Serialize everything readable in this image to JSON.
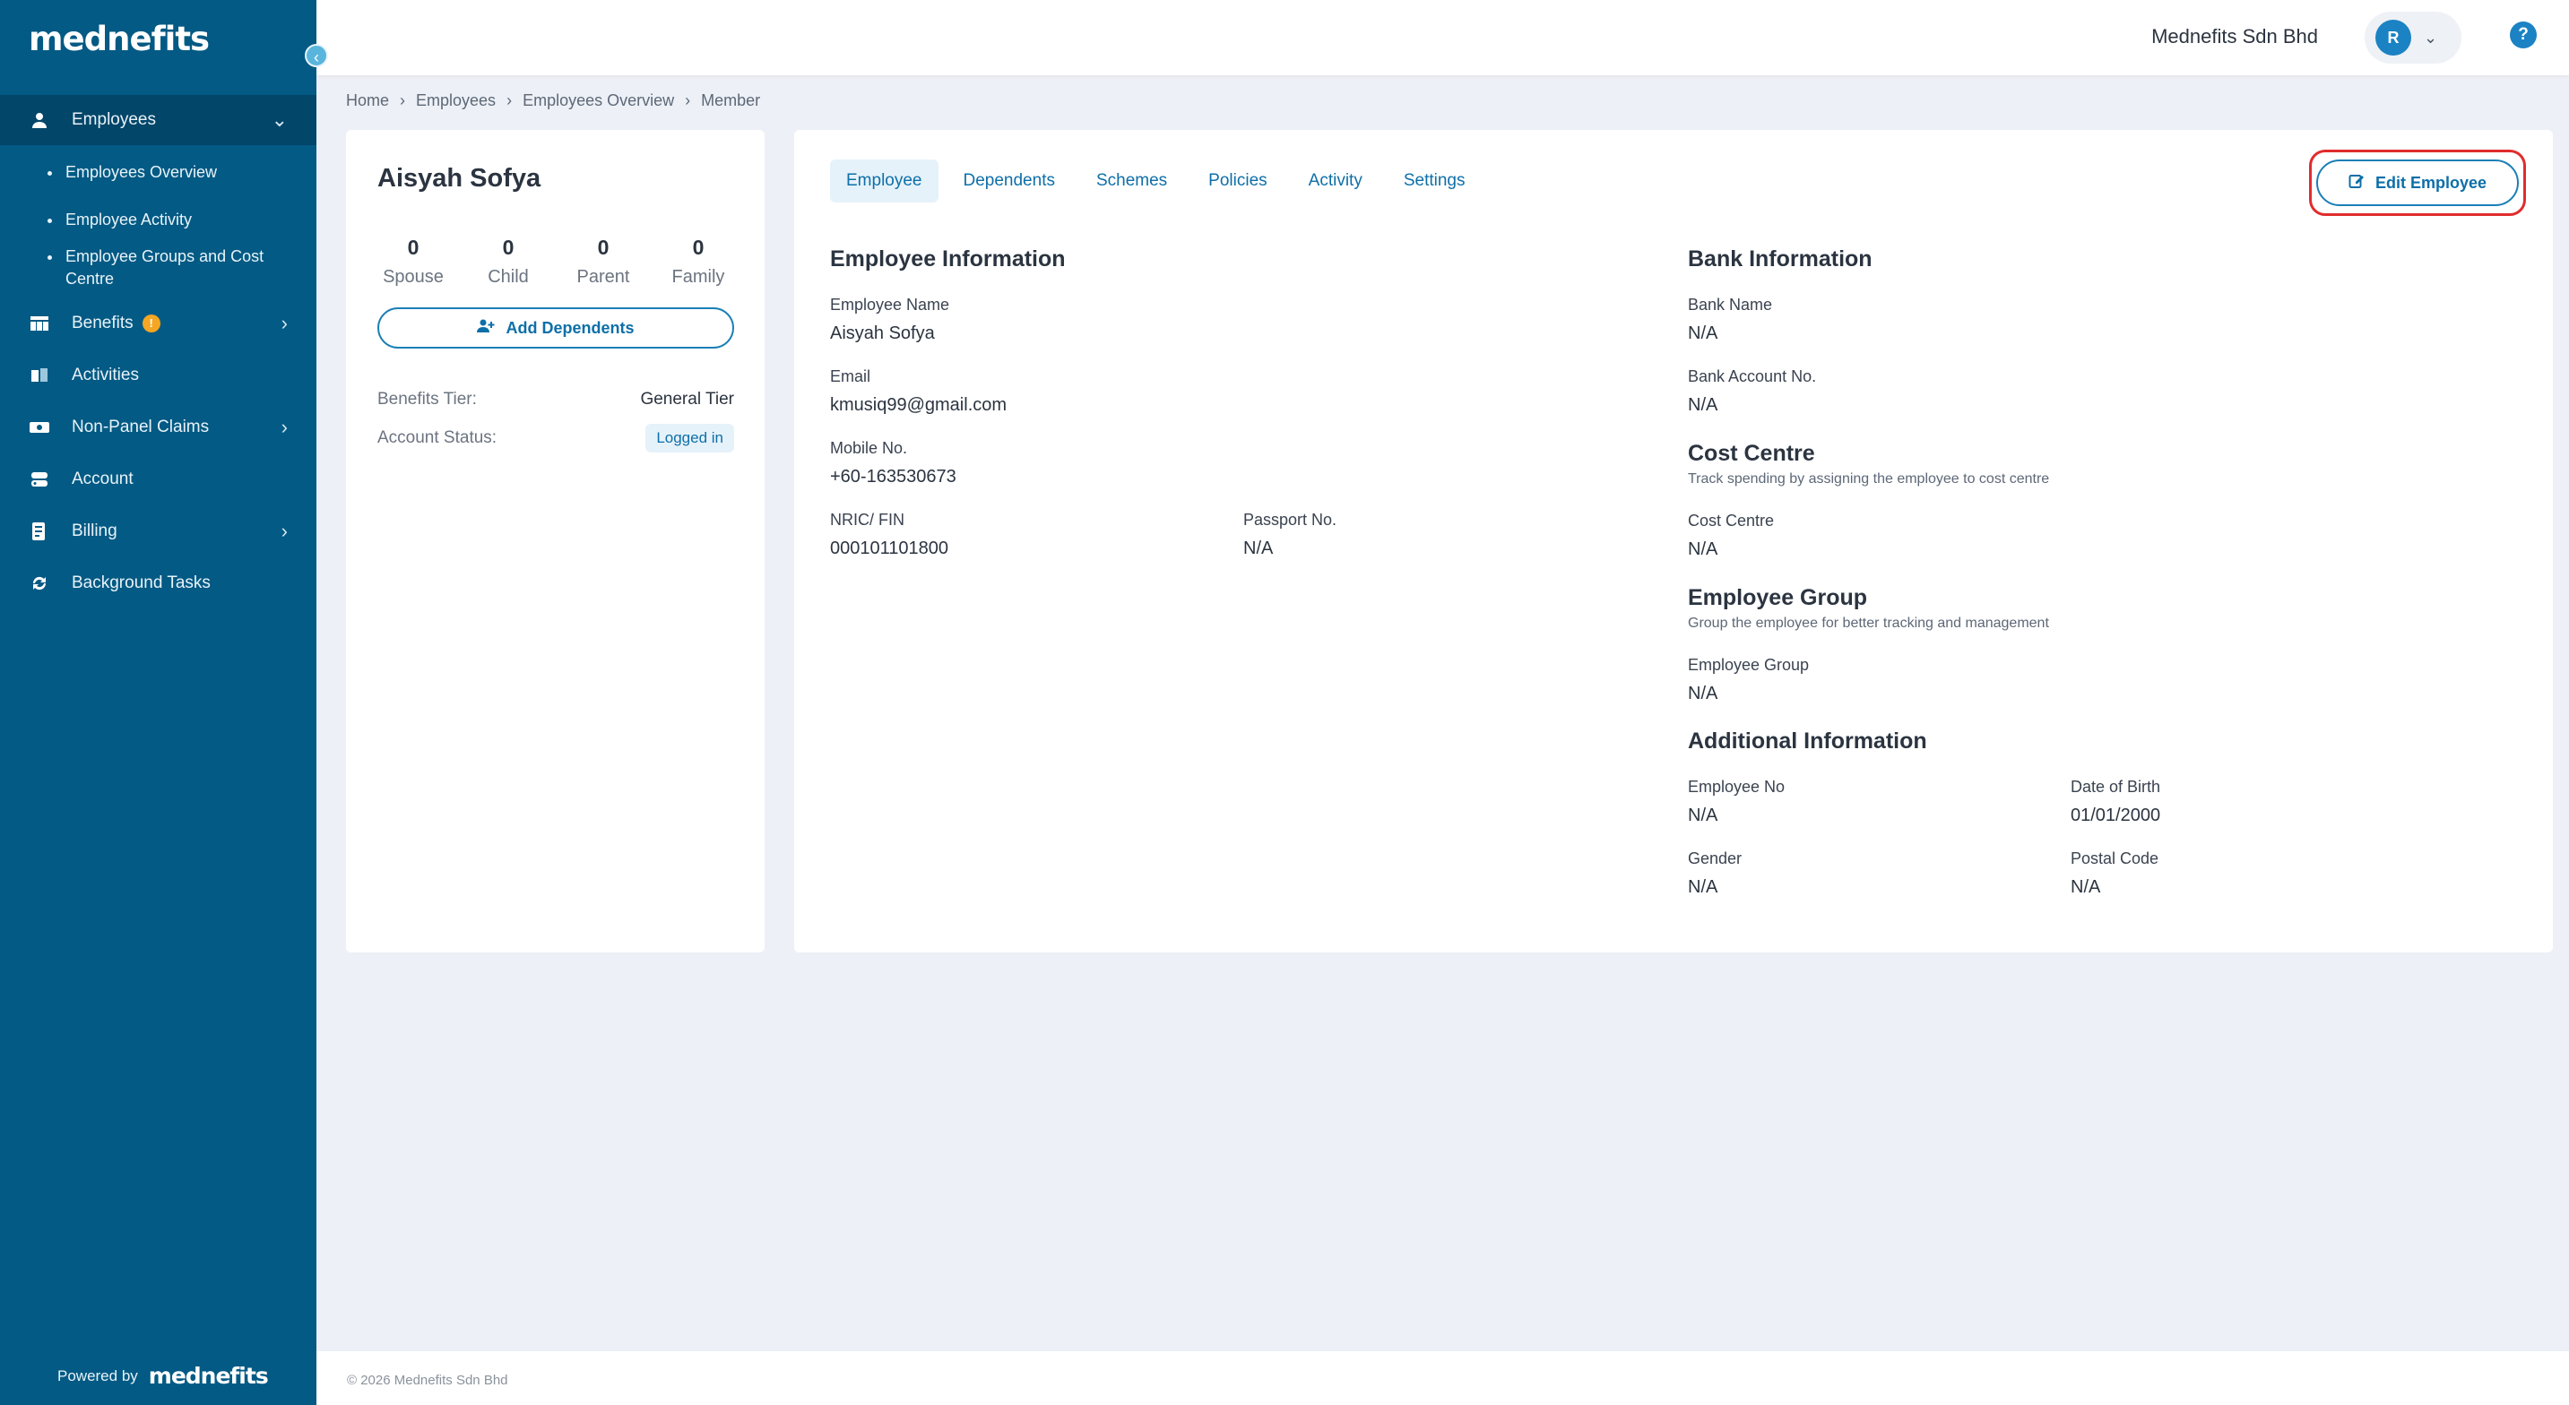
{
  "sidebar": {
    "logo": "mednefits",
    "nav": [
      {
        "label": "Employees",
        "icon": "person-icon",
        "expanded": true
      },
      {
        "label": "Benefits",
        "icon": "table-icon",
        "badge": "!"
      },
      {
        "label": "Activities",
        "icon": "book-icon"
      },
      {
        "label": "Non-Panel Claims",
        "icon": "cash-icon"
      },
      {
        "label": "Account",
        "icon": "account-icon"
      },
      {
        "label": "Billing",
        "icon": "receipt-icon"
      },
      {
        "label": "Background Tasks",
        "icon": "refresh-icon"
      }
    ],
    "sub_items": [
      "Employees Overview",
      "Employee Activity",
      "Employee Groups and Cost Centre"
    ],
    "powered_by": "Powered by",
    "powered_logo": "mednefits"
  },
  "header": {
    "company": "Mednefits Sdn Bhd",
    "avatar_initial": "R",
    "help": "?"
  },
  "breadcrumb": [
    "Home",
    "Employees",
    "Employees Overview",
    "Member"
  ],
  "profile": {
    "name": "Aisyah Sofya",
    "counts": [
      {
        "num": "0",
        "label": "Spouse"
      },
      {
        "num": "0",
        "label": "Child"
      },
      {
        "num": "0",
        "label": "Parent"
      },
      {
        "num": "0",
        "label": "Family"
      }
    ],
    "add_dependents": "Add Dependents",
    "benefits_tier_label": "Benefits Tier:",
    "benefits_tier_value": "General Tier",
    "account_status_label": "Account Status:",
    "account_status_value": "Logged in"
  },
  "tabs": [
    "Employee",
    "Dependents",
    "Schemes",
    "Policies",
    "Activity",
    "Settings"
  ],
  "edit_button": "Edit Employee",
  "employee_info": {
    "title": "Employee Information",
    "name_label": "Employee Name",
    "name_value": "Aisyah Sofya",
    "email_label": "Email",
    "email_value": "kmusiq99@gmail.com",
    "mobile_label": "Mobile No.",
    "mobile_value": "+60-163530673",
    "nric_label": "NRIC/ FIN",
    "nric_value": "000101101800",
    "passport_label": "Passport No.",
    "passport_value": "N/A"
  },
  "bank_info": {
    "title": "Bank Information",
    "bank_name_label": "Bank Name",
    "bank_name_value": "N/A",
    "account_label": "Bank Account No.",
    "account_value": "N/A"
  },
  "cost_centre": {
    "title": "Cost Centre",
    "subtitle": "Track spending by assigning the employee to cost centre",
    "label": "Cost Centre",
    "value": "N/A"
  },
  "employee_group": {
    "title": "Employee Group",
    "subtitle": "Group the employee for better tracking and management",
    "label": "Employee Group",
    "value": "N/A"
  },
  "additional_info": {
    "title": "Additional Information",
    "emp_no_label": "Employee No",
    "emp_no_value": "N/A",
    "dob_label": "Date of Birth",
    "dob_value": "01/01/2000",
    "gender_label": "Gender",
    "gender_value": "N/A",
    "postal_label": "Postal Code",
    "postal_value": "N/A"
  },
  "footer": "© 2026 Mednefits Sdn Bhd"
}
